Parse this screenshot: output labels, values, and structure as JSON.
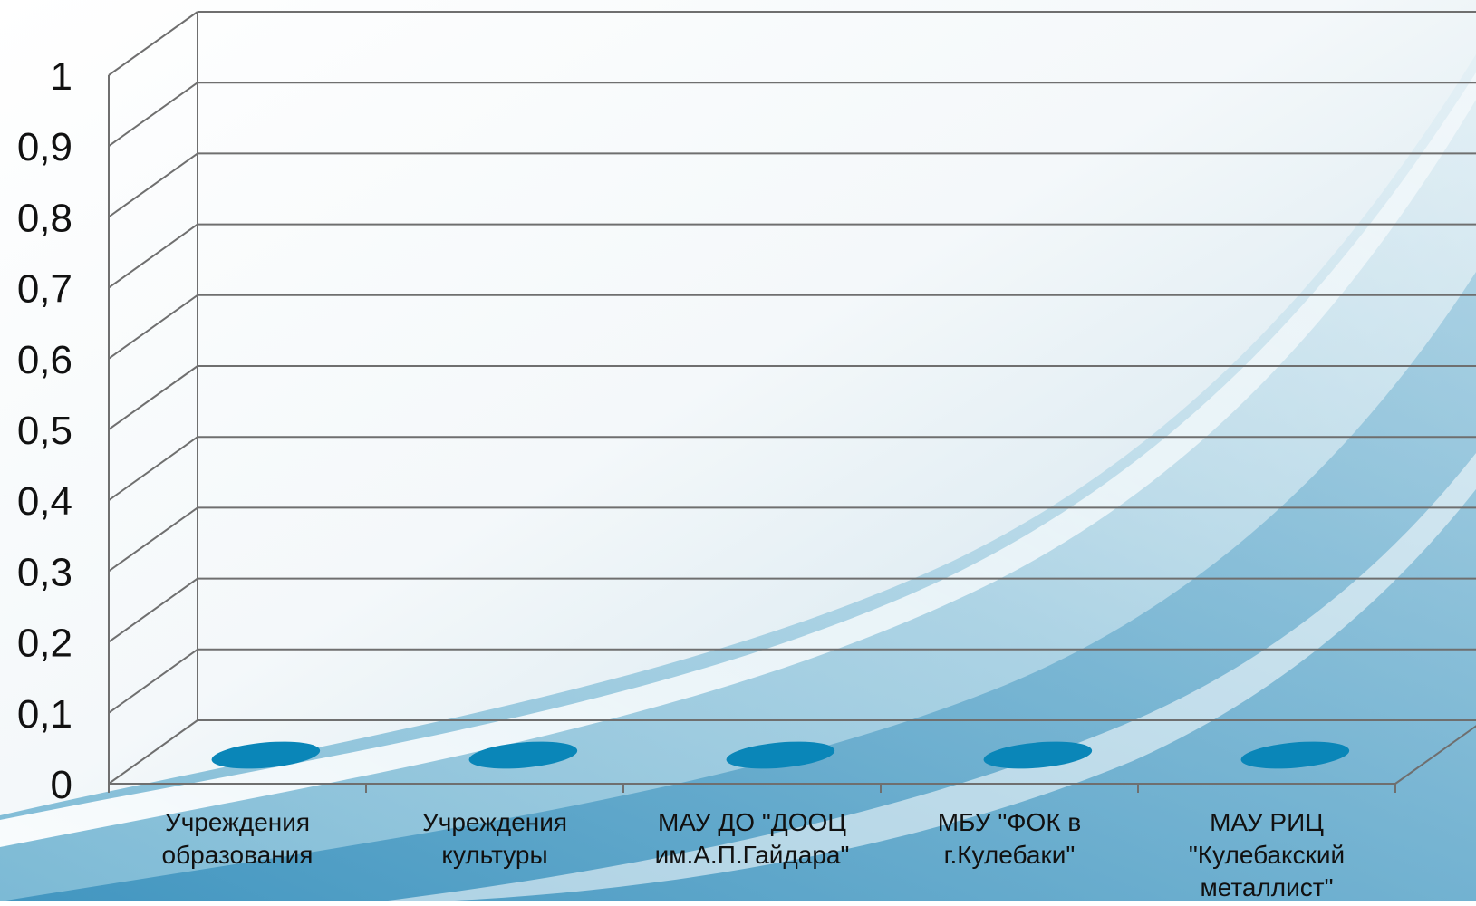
{
  "chart_data": {
    "type": "bar",
    "title": "",
    "xlabel": "",
    "ylabel": "",
    "categories": [
      [
        "Учреждения",
        "образования"
      ],
      [
        "Учреждения",
        "культуры"
      ],
      [
        "МАУ ДО \"ДООЦ",
        "им.А.П.Гайдара\""
      ],
      [
        "МБУ \"ФОК в",
        "г.Кулебаки\""
      ],
      [
        "МАУ РИЦ",
        "\"Кулебакский",
        "металлист\""
      ]
    ],
    "values": [
      0,
      0,
      0,
      0,
      0
    ],
    "ylim": [
      0,
      1
    ],
    "yticks": [
      "0",
      "0,1",
      "0,2",
      "0,3",
      "0,4",
      "0,5",
      "0,6",
      "0,7",
      "0,8",
      "0,9",
      "1"
    ],
    "grid": true,
    "legend": "none",
    "bar_color": "#0a86b8",
    "grid_color": "#6f6f6f"
  }
}
